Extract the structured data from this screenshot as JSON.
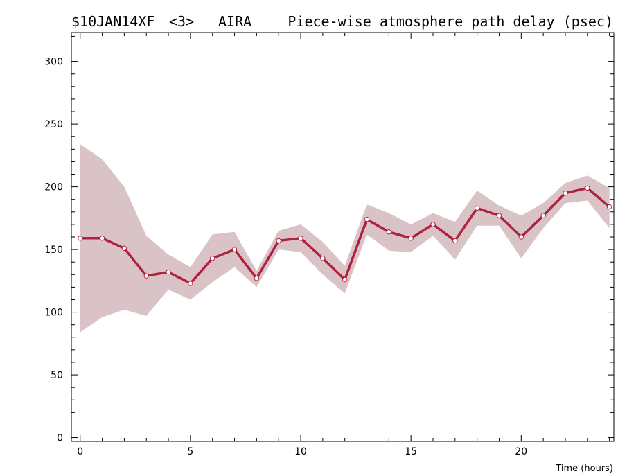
{
  "header": {
    "source": "$10JAN14XF",
    "scan": "<3>",
    "station": "AIRA",
    "title": "Piece-wise atmosphere path delay (psec)"
  },
  "chart_data": {
    "type": "line",
    "title": "Piece-wise atmosphere path delay (psec)",
    "xlabel": "Time (hours)",
    "ylabel": "",
    "xlim": [
      -0.4,
      24.2
    ],
    "ylim": [
      -3,
      323
    ],
    "x_ticks": [
      0,
      5,
      10,
      15,
      20
    ],
    "y_ticks": [
      0,
      50,
      100,
      150,
      200,
      250,
      300
    ],
    "grid": false,
    "series": [
      {
        "x": [
          0,
          1,
          2,
          3,
          4,
          5,
          6,
          7,
          8,
          9,
          10,
          11,
          12,
          13,
          14,
          15,
          16,
          17,
          18,
          19,
          20,
          21,
          22,
          23,
          24
        ],
        "values": [
          159,
          159,
          151,
          129,
          132,
          123,
          143,
          150,
          127,
          157,
          159,
          143,
          126,
          174,
          164,
          159,
          170,
          157,
          183,
          177,
          160,
          177,
          195,
          199,
          184
        ],
        "upper": [
          234,
          222,
          200,
          161,
          146,
          136,
          162,
          164,
          133,
          165,
          170,
          156,
          137,
          186,
          179,
          170,
          179,
          172,
          197,
          185,
          177,
          187,
          203,
          209,
          199
        ],
        "lower": [
          84,
          96,
          102,
          97,
          118,
          110,
          124,
          136,
          120,
          150,
          148,
          130,
          115,
          162,
          149,
          148,
          161,
          142,
          169,
          169,
          143,
          167,
          187,
          189,
          167
        ]
      }
    ],
    "colors": {
      "line": "#b0203f",
      "band": "#d9c3c7",
      "marker_fill": "#ffffff"
    }
  }
}
